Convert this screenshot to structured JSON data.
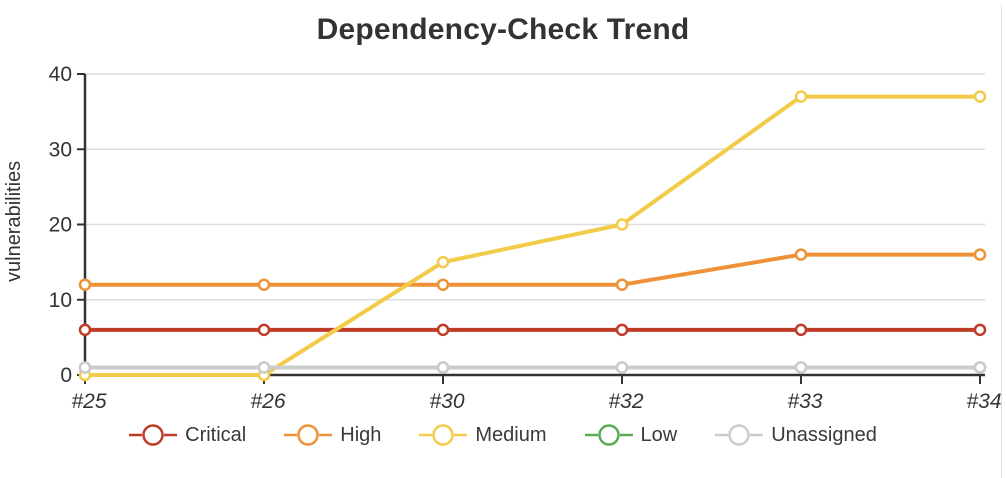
{
  "title": "Dependency-Check Trend",
  "chart_data": {
    "type": "line",
    "title": "Dependency-Check Trend",
    "xlabel": "",
    "ylabel": "vulnerabilities",
    "categories": [
      "#25",
      "#26",
      "#30",
      "#32",
      "#33",
      "#34"
    ],
    "yticks": [
      0,
      10,
      20,
      30,
      40
    ],
    "ylim": [
      0,
      40
    ],
    "grid": "horizontal",
    "legend_position": "bottom",
    "point_style": "empty-circle",
    "series": [
      {
        "name": "Critical",
        "color": "#bf3c28",
        "values": [
          6,
          6,
          6,
          6,
          6,
          6
        ]
      },
      {
        "name": "High",
        "color": "#ee9137",
        "values": [
          12,
          12,
          12,
          12,
          16,
          16
        ]
      },
      {
        "name": "Medium",
        "color": "#f2cb49",
        "values": [
          0,
          0,
          15,
          20,
          37,
          37
        ]
      },
      {
        "name": "Low",
        "color": "#5aab55",
        "values": [
          1,
          1,
          1,
          1,
          1,
          1
        ],
        "note": "line hidden beneath Unassigned line"
      },
      {
        "name": "Unassigned",
        "color": "#cccccc",
        "values": [
          1,
          1,
          1,
          1,
          1,
          1
        ]
      }
    ]
  }
}
